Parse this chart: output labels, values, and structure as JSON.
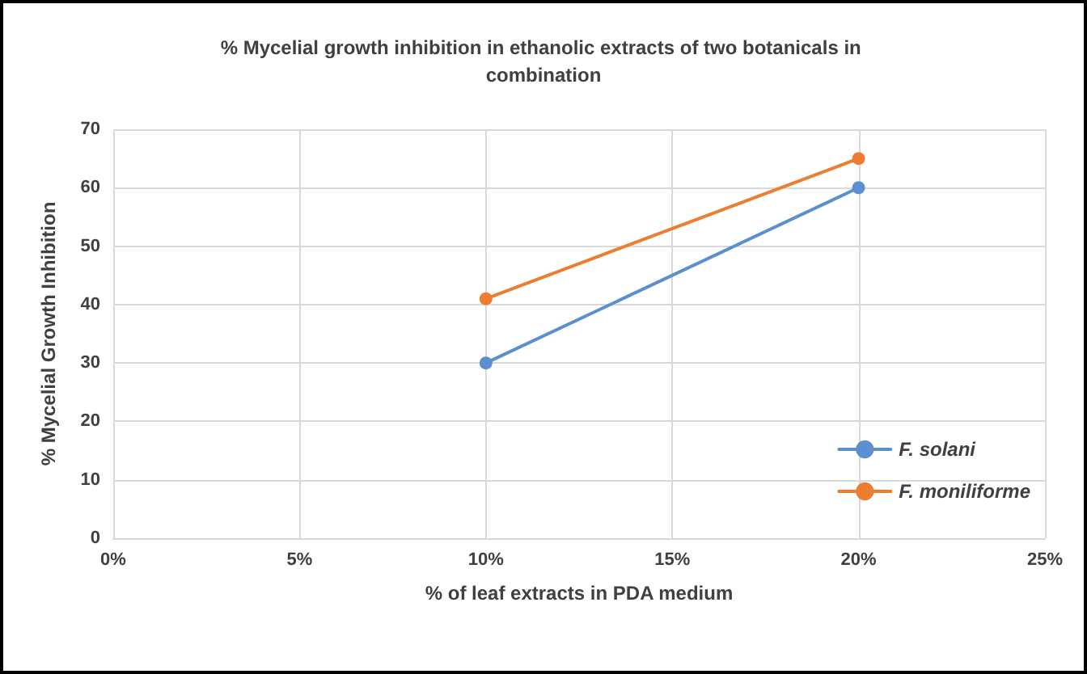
{
  "chart_data": {
    "type": "line",
    "title": "% Mycelial growth inhibition in ethanolic extracts of two botanicals in combination",
    "xlabel": "% of leaf extracts in PDA medium",
    "ylabel": "% Mycelial Growth Inhibition",
    "x": [
      10,
      20
    ],
    "series": [
      {
        "name": "F. solani",
        "color": "#5b8fcf",
        "values": [
          30,
          60
        ]
      },
      {
        "name": "F. moniliforme",
        "color": "#ed7d31",
        "values": [
          41,
          65
        ]
      }
    ],
    "xlim": [
      0,
      25
    ],
    "xticks": [
      {
        "value": 0,
        "label": "0%"
      },
      {
        "value": 5,
        "label": "5%"
      },
      {
        "value": 10,
        "label": "10%"
      },
      {
        "value": 15,
        "label": "15%"
      },
      {
        "value": 20,
        "label": "20%"
      },
      {
        "value": 25,
        "label": "25%"
      }
    ],
    "ylim": [
      0,
      70
    ],
    "yticks": [
      0,
      10,
      20,
      30,
      40,
      50,
      60,
      70
    ],
    "grid": true,
    "legend": "bottom right",
    "marker": "circle",
    "line_style": "solid"
  }
}
